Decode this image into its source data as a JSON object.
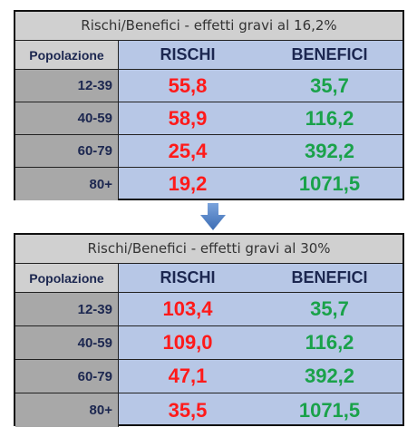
{
  "tables": [
    {
      "title": "Rischi/Benefici - effetti gravi al 16,2%",
      "headers": [
        "Popolazione",
        "RISCHI",
        "BENEFICI"
      ],
      "rows": [
        {
          "pop": "12-39",
          "risk": "55,8",
          "benefit": "35,7"
        },
        {
          "pop": "40-59",
          "risk": "58,9",
          "benefit": "116,2"
        },
        {
          "pop": "60-79",
          "risk": "25,4",
          "benefit": "392,2"
        },
        {
          "pop": "80+",
          "risk": "19,2",
          "benefit": "1071,5"
        }
      ]
    },
    {
      "title": "Rischi/Benefici - effetti gravi al 30%",
      "headers": [
        "Popolazione",
        "RISCHI",
        "BENEFICI"
      ],
      "rows": [
        {
          "pop": "12-39",
          "risk": "103,4",
          "benefit": "35,7"
        },
        {
          "pop": "40-59",
          "risk": "109,0",
          "benefit": "116,2"
        },
        {
          "pop": "60-79",
          "risk": "47,1",
          "benefit": "392,2"
        },
        {
          "pop": "80+",
          "risk": "35,5",
          "benefit": "1071,5"
        }
      ]
    }
  ],
  "colors": {
    "risk": "#ff1a1a",
    "benefit": "#1aa24a",
    "header_text": "#1c2750",
    "arrow": "#4a7cc4"
  },
  "arrow_icon": "arrow-down-icon"
}
